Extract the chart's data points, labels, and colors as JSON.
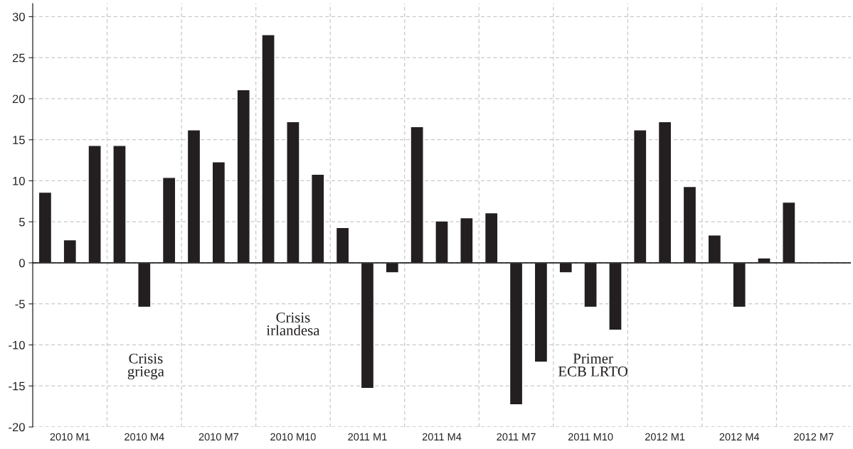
{
  "chart_data": {
    "type": "bar",
    "categories": [
      null,
      "2010 M1",
      null,
      null,
      "2010 M4",
      null,
      null,
      "2010 M7",
      null,
      null,
      "2010 M10",
      null,
      null,
      "2011 M1",
      null,
      null,
      "2011 M4",
      null,
      null,
      "2011 M7",
      null,
      null,
      "2011 M10",
      null,
      null,
      "2012 M1",
      null,
      null,
      "2012 M4",
      null,
      null,
      "2012 M7",
      null
    ],
    "values": [
      8.6,
      2.8,
      14.3,
      14.3,
      -5.4,
      10.4,
      16.2,
      12.3,
      21.1,
      27.8,
      17.2,
      10.8,
      4.3,
      -15.3,
      -1.2,
      16.6,
      5.1,
      5.5,
      6.1,
      -17.3,
      -12.1,
      -1.2,
      -5.4,
      -8.2,
      16.2,
      17.2,
      9.3,
      3.4,
      -5.4,
      0.6,
      7.4,
      null,
      null
    ],
    "color": "#231f20",
    "ylim": [
      -20,
      31.6
    ],
    "yticks": [
      -20,
      -15,
      -10,
      -5,
      0,
      5,
      10,
      15,
      20,
      25,
      30
    ],
    "grid": true,
    "annotations": [
      "Crisis\ngriega",
      "Crisis\nirlandesa",
      "Primer\nECB LRTO"
    ]
  }
}
